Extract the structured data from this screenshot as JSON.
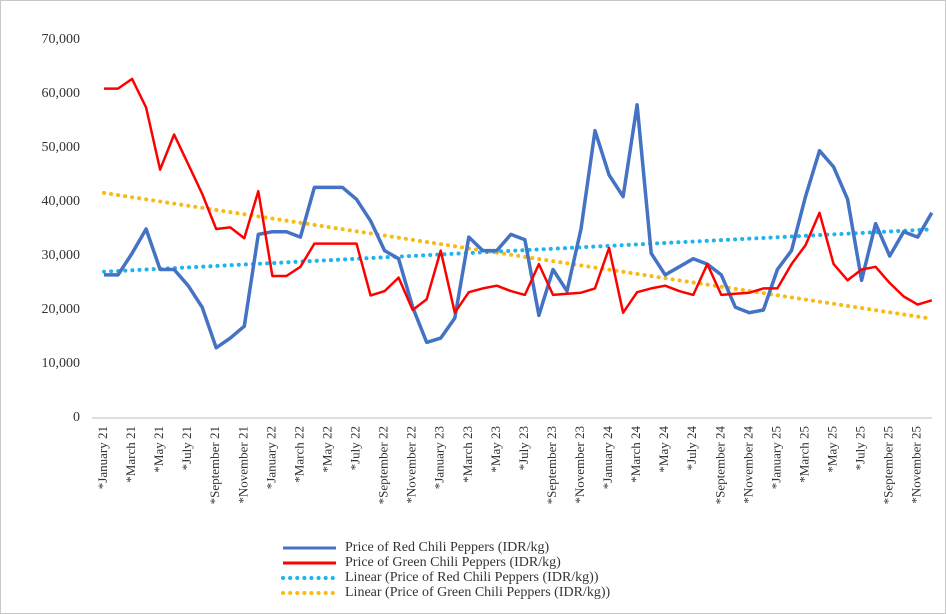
{
  "chart_data": {
    "type": "line",
    "categories": [
      "*January 21",
      null,
      "*March 21",
      null,
      "*May 21",
      null,
      "*July 21",
      null,
      "*September 21",
      null,
      "*November 21",
      null,
      "*January 22",
      null,
      "*March 22",
      null,
      "*May 22",
      null,
      "*July 22",
      null,
      "*September 22",
      null,
      "*November 22",
      null,
      "*January 23",
      null,
      "*March 23",
      null,
      "*May 23",
      null,
      "*July 23",
      null,
      "*September 23",
      null,
      "*November 23",
      null,
      "*January 24",
      null,
      "*March 24",
      null,
      "*May 24",
      null,
      "*July 24",
      null,
      "*September 24",
      null,
      "*November 24",
      null,
      "*January 25",
      null,
      "*March 25",
      null,
      "*May 25",
      null,
      "*July 25",
      null,
      "*September 25",
      null,
      "*November 25",
      null
    ],
    "series": [
      {
        "name": "Price of Red Chili Peppers (IDR/kg)",
        "color": "#4472c4",
        "values": [
          26500,
          26500,
          30500,
          35000,
          27500,
          27500,
          24500,
          20500,
          13000,
          14800,
          17000,
          34000,
          34500,
          34500,
          33500,
          42700,
          42700,
          42700,
          40500,
          36500,
          31000,
          29500,
          20500,
          14000,
          14800,
          18500,
          33500,
          31000,
          31000,
          34000,
          33000,
          19000,
          27500,
          23500,
          35000,
          53200,
          45000,
          41000,
          58000,
          30500,
          26500,
          28000,
          29500,
          28500,
          26500,
          20500,
          19500,
          20000,
          27500,
          31000,
          41000,
          49500,
          46500,
          40500,
          25500,
          36000,
          30000,
          34500,
          33500,
          38000
        ]
      },
      {
        "name": "Price of Green Chili Peppers (IDR/kg)",
        "color": "#ff0000",
        "values": [
          61000,
          61000,
          62800,
          57500,
          46000,
          52500,
          47000,
          41500,
          35000,
          35300,
          33300,
          42000,
          26300,
          26300,
          28000,
          32300,
          32300,
          32300,
          32300,
          22700,
          23500,
          26000,
          20000,
          22000,
          31000,
          19500,
          23300,
          24000,
          24500,
          23500,
          22800,
          28500,
          22800,
          23000,
          23200,
          24000,
          31500,
          19500,
          23300,
          24000,
          24500,
          23500,
          22800,
          28500,
          22800,
          23000,
          23200,
          24000,
          24000,
          28500,
          32000,
          38000,
          28500,
          25500,
          27500,
          28000,
          25000,
          22500,
          21000,
          21800
        ]
      }
    ],
    "trendlines": [
      {
        "name": "Linear (Price of Red Chili Peppers (IDR/kg))",
        "color": "#1fb4ea",
        "series": 0
      },
      {
        "name": "Linear (Price of Green Chili Peppers (IDR/kg))",
        "color": "#f8bb14",
        "series": 1
      }
    ],
    "ylim": [
      0,
      70000
    ],
    "yticks": [
      0,
      {
        "value": 10000,
        "label": "10,000"
      },
      {
        "value": 20000,
        "label": "20,000"
      },
      {
        "value": 30000,
        "label": "30,000"
      },
      {
        "value": 40000,
        "label": "40,000"
      },
      {
        "value": 50000,
        "label": "50,000"
      },
      {
        "value": 60000,
        "label": "60,000"
      },
      {
        "value": 70000,
        "label": "70,000"
      }
    ],
    "grid": false
  }
}
